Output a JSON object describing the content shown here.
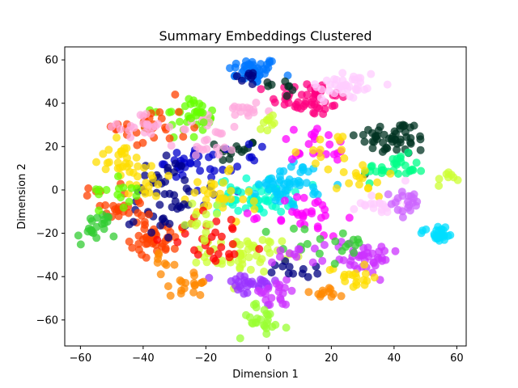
{
  "chart_data": {
    "type": "scatter",
    "title": "Summary Embeddings Clustered",
    "xlabel": "Dimension 1",
    "ylabel": "Dimension 2",
    "xlim": [
      -65,
      63
    ],
    "ylim": [
      -72,
      66
    ],
    "xticks": [
      -60,
      -40,
      -20,
      0,
      20,
      40,
      60
    ],
    "yticks": [
      -60,
      -40,
      -20,
      0,
      20,
      40,
      60
    ],
    "grid": false,
    "legend": "none",
    "clusters": [
      {
        "color": "#0077ff",
        "center": [
          -5,
          55
        ],
        "spread": [
          4,
          3
        ],
        "count": 45
      },
      {
        "color": "#ff0080",
        "center": [
          13,
          42
        ],
        "spread": [
          6,
          4
        ],
        "count": 50
      },
      {
        "color": "#ffccff",
        "center": [
          24,
          48
        ],
        "spread": [
          6,
          4
        ],
        "count": 40
      },
      {
        "color": "#003322",
        "center": [
          40,
          24
        ],
        "spread": [
          6,
          4
        ],
        "count": 50
      },
      {
        "color": "#003322",
        "center": [
          -10,
          18
        ],
        "spread": [
          3,
          3
        ],
        "count": 14
      },
      {
        "color": "#00ff88",
        "center": [
          40,
          10
        ],
        "spread": [
          5,
          3
        ],
        "count": 30
      },
      {
        "color": "#66ff00",
        "center": [
          -27,
          32
        ],
        "spread": [
          5,
          4
        ],
        "count": 25
      },
      {
        "color": "#ff4000",
        "center": [
          -38,
          30
        ],
        "spread": [
          6,
          6
        ],
        "count": 30
      },
      {
        "color": "#ffaadd",
        "center": [
          -40,
          29
        ],
        "spread": [
          4,
          3
        ],
        "count": 20
      },
      {
        "color": "#ff4000",
        "center": [
          -36,
          -22
        ],
        "spread": [
          4,
          4
        ],
        "count": 40
      },
      {
        "color": "#ff4000",
        "center": [
          -53,
          -5
        ],
        "spread": [
          3,
          4
        ],
        "count": 14
      },
      {
        "color": "#33cc33",
        "center": [
          -55,
          -18
        ],
        "spread": [
          3,
          4
        ],
        "count": 22
      },
      {
        "color": "#ffdd00",
        "center": [
          -48,
          14
        ],
        "spread": [
          4,
          4
        ],
        "count": 25
      },
      {
        "color": "#0000cc",
        "center": [
          -27,
          13
        ],
        "spread": [
          3,
          3
        ],
        "count": 22
      },
      {
        "color": "#0000cc",
        "center": [
          -15,
          8
        ],
        "spread": [
          6,
          6
        ],
        "count": 20
      },
      {
        "color": "#ffaadd",
        "center": [
          -17,
          24
        ],
        "spread": [
          6,
          5
        ],
        "count": 25
      },
      {
        "color": "#ffaadd",
        "center": [
          -7,
          37
        ],
        "spread": [
          4,
          3
        ],
        "count": 14
      },
      {
        "color": "#000080",
        "center": [
          -32,
          0
        ],
        "spread": [
          7,
          8
        ],
        "count": 30
      },
      {
        "color": "#00ffcc",
        "center": [
          -4,
          -3
        ],
        "spread": [
          6,
          4
        ],
        "count": 60
      },
      {
        "color": "#00ccff",
        "center": [
          7,
          3
        ],
        "spread": [
          5,
          5
        ],
        "count": 50
      },
      {
        "color": "#ccff33",
        "center": [
          -8,
          -30
        ],
        "spread": [
          6,
          4
        ],
        "count": 50
      },
      {
        "color": "#9933ff",
        "center": [
          -7,
          -44
        ],
        "spread": [
          5,
          3
        ],
        "count": 30
      },
      {
        "color": "#cc33ff",
        "center": [
          2,
          -48
        ],
        "spread": [
          5,
          3
        ],
        "count": 20
      },
      {
        "color": "#99ff33",
        "center": [
          -2,
          -60
        ],
        "spread": [
          4,
          4
        ],
        "count": 25
      },
      {
        "color": "#ff8800",
        "center": [
          -25,
          -43
        ],
        "spread": [
          3,
          3
        ],
        "count": 18
      },
      {
        "color": "#ff8800",
        "center": [
          -33,
          -34
        ],
        "spread": [
          2,
          2
        ],
        "count": 8
      },
      {
        "color": "#ffdd00",
        "center": [
          -18,
          -5
        ],
        "spread": [
          6,
          6
        ],
        "count": 30
      },
      {
        "color": "#cc33ff",
        "center": [
          30,
          -31
        ],
        "spread": [
          6,
          4
        ],
        "count": 40
      },
      {
        "color": "#ffdd00",
        "center": [
          27,
          -40
        ],
        "spread": [
          4,
          3
        ],
        "count": 18
      },
      {
        "color": "#ffdd00",
        "center": [
          30,
          5
        ],
        "spread": [
          4,
          4
        ],
        "count": 15
      },
      {
        "color": "#ffccff",
        "center": [
          37,
          -6
        ],
        "spread": [
          4,
          3
        ],
        "count": 25
      },
      {
        "color": "#cc66ff",
        "center": [
          45,
          -6
        ],
        "spread": [
          3,
          3
        ],
        "count": 20
      },
      {
        "color": "#00ddff",
        "center": [
          54,
          -20
        ],
        "spread": [
          3,
          2
        ],
        "count": 25
      },
      {
        "color": "#ccff33",
        "center": [
          57,
          5
        ],
        "spread": [
          1.5,
          2
        ],
        "count": 8
      },
      {
        "color": "#ff00ff",
        "center": [
          12,
          -12
        ],
        "spread": [
          6,
          5
        ],
        "count": 30
      },
      {
        "color": "#33cc33",
        "center": [
          18,
          -25
        ],
        "spread": [
          8,
          5
        ],
        "count": 20
      },
      {
        "color": "#000080",
        "center": [
          10,
          -37
        ],
        "spread": [
          4,
          2
        ],
        "count": 12
      },
      {
        "color": "#ff8800",
        "center": [
          18,
          -48
        ],
        "spread": [
          4,
          2
        ],
        "count": 12
      },
      {
        "color": "#66ff00",
        "center": [
          -24,
          36
        ],
        "spread": [
          3,
          3
        ],
        "count": 15
      },
      {
        "color": "#ff0000",
        "center": [
          -16,
          -22
        ],
        "spread": [
          8,
          6
        ],
        "count": 30
      },
      {
        "color": "#ff00ff",
        "center": [
          15,
          20
        ],
        "spread": [
          6,
          5
        ],
        "count": 22
      },
      {
        "color": "#ffdd00",
        "center": [
          22,
          18
        ],
        "spread": [
          5,
          4
        ],
        "count": 12
      },
      {
        "color": "#000080",
        "center": [
          -34,
          -12
        ],
        "spread": [
          6,
          4
        ],
        "count": 18
      },
      {
        "color": "#ffdd00",
        "center": [
          -40,
          5
        ],
        "spread": [
          5,
          5
        ],
        "count": 18
      },
      {
        "color": "#ff4000",
        "center": [
          -43,
          -8
        ],
        "spread": [
          3,
          3
        ],
        "count": 12
      },
      {
        "color": "#66ff00",
        "center": [
          -46,
          0
        ],
        "spread": [
          4,
          4
        ],
        "count": 15
      },
      {
        "color": "#ccff33",
        "center": [
          -22,
          -15
        ],
        "spread": [
          4,
          4
        ],
        "count": 14
      },
      {
        "color": "#000080",
        "center": [
          -8,
          52
        ],
        "spread": [
          3,
          2
        ],
        "count": 8
      },
      {
        "color": "#003322",
        "center": [
          5,
          48
        ],
        "spread": [
          3,
          2
        ],
        "count": 8
      },
      {
        "color": "#ccff33",
        "center": [
          0,
          32
        ],
        "spread": [
          3,
          2
        ],
        "count": 10
      },
      {
        "color": "#cc33ff",
        "center": [
          8,
          -30
        ],
        "spread": [
          5,
          3
        ],
        "count": 10
      }
    ]
  }
}
